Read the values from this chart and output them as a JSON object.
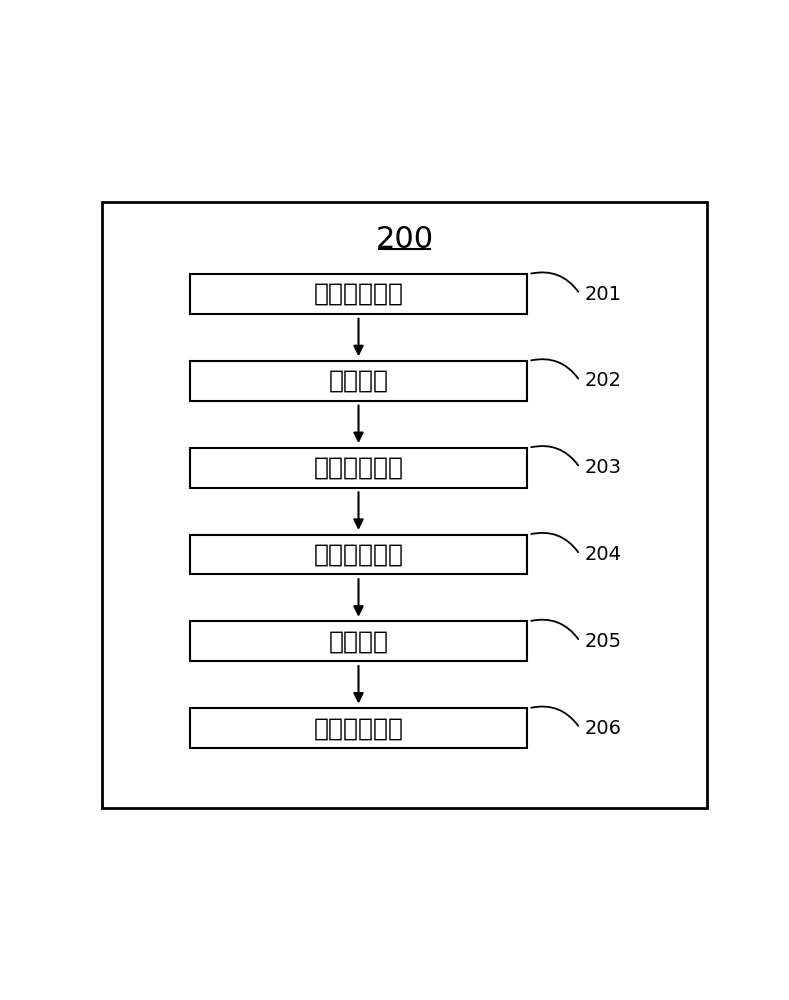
{
  "title": "200",
  "background_color": "#ffffff",
  "border_color": "#000000",
  "boxes": [
    {
      "label": "数据获取模块",
      "tag": "201"
    },
    {
      "label": "构建模块",
      "tag": "202"
    },
    {
      "label": "仿真测试模块",
      "tag": "203"
    },
    {
      "label": "设备选型模块",
      "tag": "204"
    },
    {
      "label": "实测模块",
      "tag": "205"
    },
    {
      "label": "特性获取模块",
      "tag": "206"
    }
  ],
  "box_color": "#ffffff",
  "box_edge_color": "#000000",
  "text_color": "#000000",
  "arrow_color": "#000000",
  "tag_color": "#000000",
  "fig_width": 7.89,
  "fig_height": 10.0
}
